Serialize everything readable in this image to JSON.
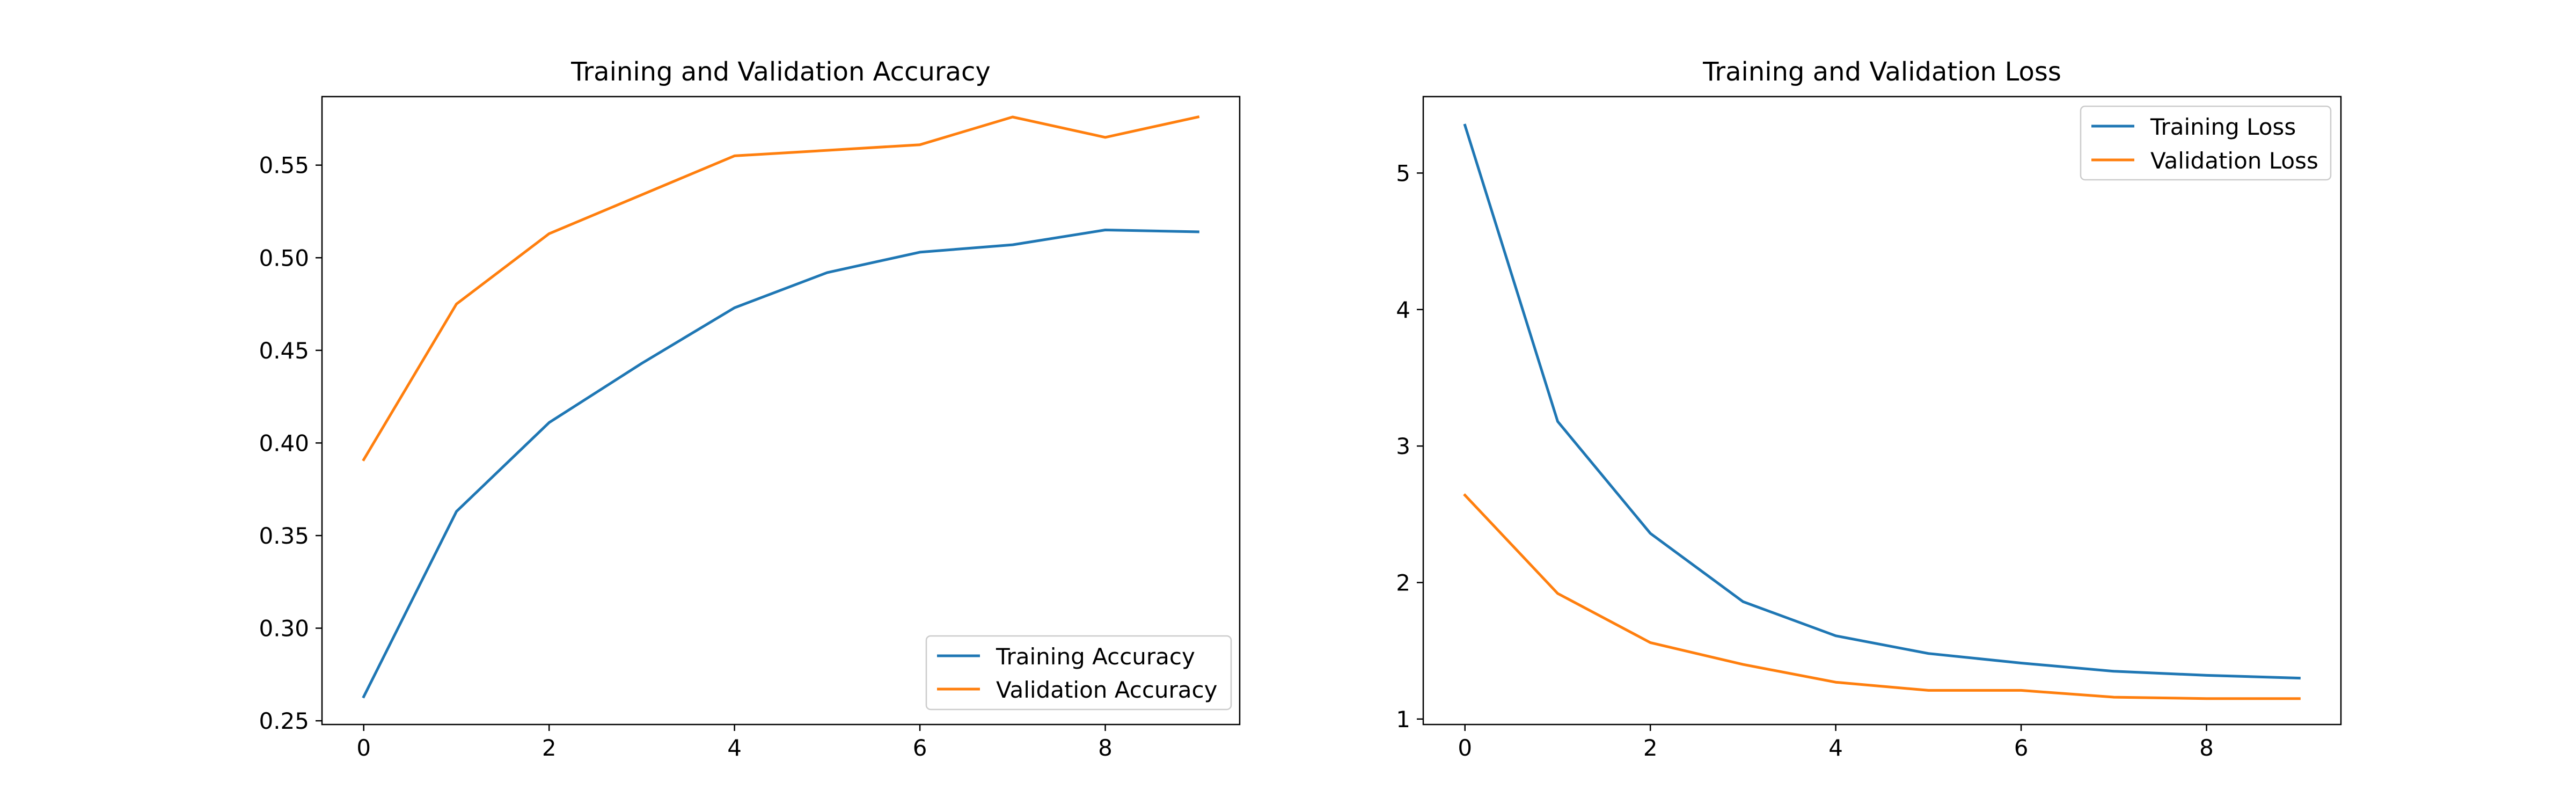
{
  "chart_data": [
    {
      "type": "line",
      "title": "Training and Validation Accuracy",
      "xlabel": "",
      "ylabel": "",
      "x": [
        0,
        1,
        2,
        3,
        4,
        5,
        6,
        7,
        8,
        9
      ],
      "xlim": [
        -0.45,
        9.45
      ],
      "ylim": [
        0.248,
        0.587
      ],
      "xticks": [
        0,
        2,
        4,
        6,
        8
      ],
      "yticks": [
        0.25,
        0.3,
        0.35,
        0.4,
        0.45,
        0.5,
        0.55
      ],
      "xtick_labels": [
        "0",
        "2",
        "4",
        "6",
        "8"
      ],
      "ytick_labels": [
        "0.25",
        "0.30",
        "0.35",
        "0.40",
        "0.45",
        "0.50",
        "0.55"
      ],
      "grid": false,
      "legend_position": "lower-right",
      "series": [
        {
          "name": "Training Accuracy",
          "color": "#1f77b4",
          "values": [
            0.263,
            0.363,
            0.411,
            0.443,
            0.473,
            0.492,
            0.503,
            0.507,
            0.515,
            0.514
          ]
        },
        {
          "name": "Validation Accuracy",
          "color": "#ff7f0e",
          "values": [
            0.391,
            0.475,
            0.513,
            0.534,
            0.555,
            0.558,
            0.561,
            0.576,
            0.565,
            0.576
          ]
        }
      ]
    },
    {
      "type": "line",
      "title": "Training and Validation Loss",
      "xlabel": "",
      "ylabel": "",
      "x": [
        0,
        1,
        2,
        3,
        4,
        5,
        6,
        7,
        8,
        9
      ],
      "xlim": [
        -0.45,
        9.45
      ],
      "ylim": [
        0.96,
        5.56
      ],
      "xticks": [
        0,
        2,
        4,
        6,
        8
      ],
      "yticks": [
        1,
        2,
        3,
        4,
        5
      ],
      "xtick_labels": [
        "0",
        "2",
        "4",
        "6",
        "8"
      ],
      "ytick_labels": [
        "1",
        "2",
        "3",
        "4",
        "5"
      ],
      "grid": false,
      "legend_position": "upper-right",
      "series": [
        {
          "name": "Training Loss",
          "color": "#1f77b4",
          "values": [
            5.35,
            3.18,
            2.36,
            1.86,
            1.61,
            1.48,
            1.41,
            1.35,
            1.32,
            1.3
          ]
        },
        {
          "name": "Validation Loss",
          "color": "#ff7f0e",
          "values": [
            2.64,
            1.92,
            1.56,
            1.4,
            1.27,
            1.21,
            1.21,
            1.16,
            1.15,
            1.15
          ]
        }
      ]
    }
  ]
}
